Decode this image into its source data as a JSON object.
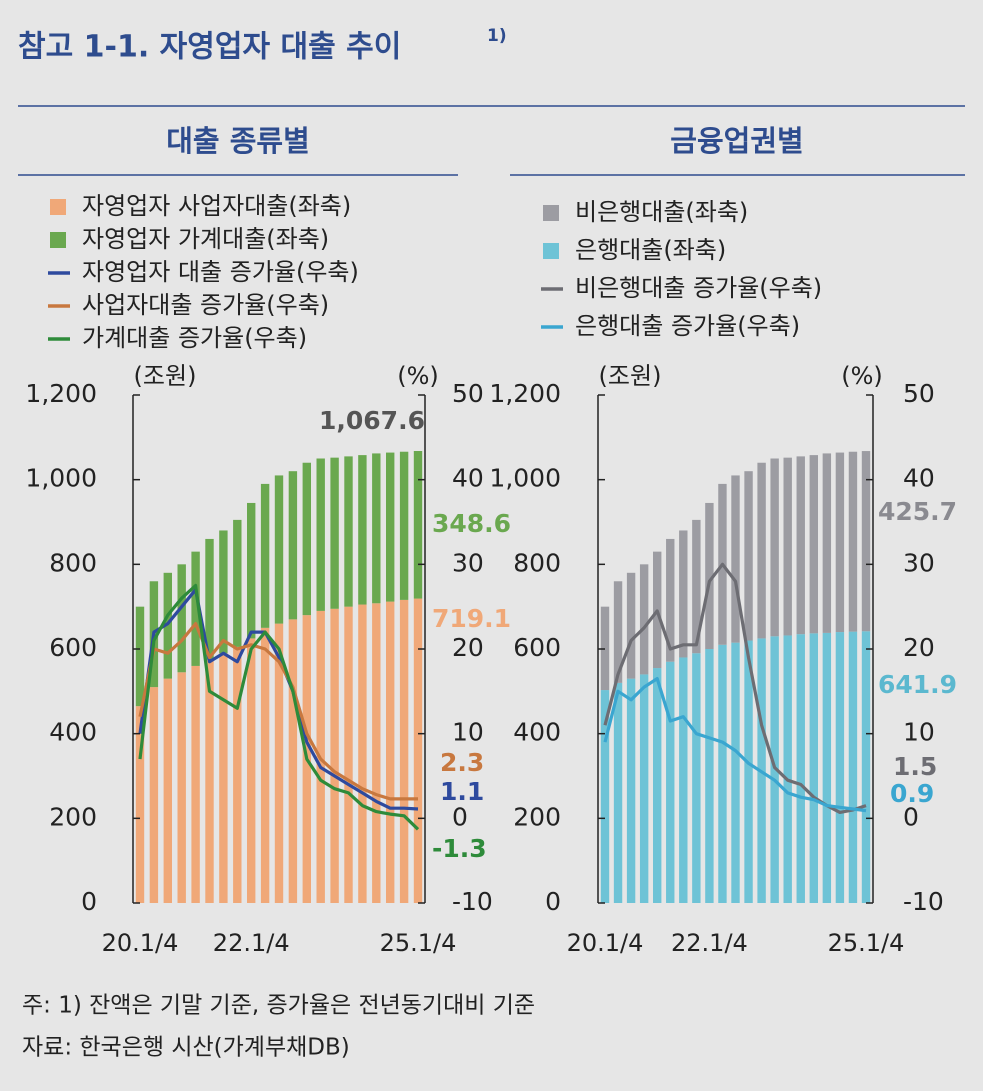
{
  "title": "참고 1-1. 자영업자 대출 추이",
  "title_note": "1)",
  "footnotes": [
    "주: 1) 잔액은 기말 기준, 증가율은 전년동기대비 기준",
    "자료: 한국은행 시산(가계부채DB)"
  ],
  "chart_data": [
    {
      "type": "bar",
      "title": "대출 종류별",
      "ylabel": "(조원)",
      "y2label": "(%)",
      "categories": [
        "20.1/4",
        null,
        null,
        null,
        null,
        null,
        null,
        null,
        "22.1/4",
        null,
        null,
        null,
        null,
        null,
        null,
        null,
        null,
        null,
        null,
        null,
        "25.1/4"
      ],
      "ylim": [
        0,
        1200
      ],
      "yticks": [
        0,
        200,
        400,
        600,
        800,
        {
          "value": 1000,
          "label": "1,000"
        },
        {
          "value": 1200,
          "label": "1,200"
        }
      ],
      "y2lim": [
        -10,
        50
      ],
      "y2ticks": [
        -10,
        0,
        10,
        20,
        30,
        40,
        50
      ],
      "annotations": [
        {
          "value": 1067.6,
          "label": "1,067.6"
        }
      ],
      "series": [
        {
          "name": "자영업자 사업자대출(좌축)",
          "type": "bar",
          "color": "#f0a878",
          "values": [
            465,
            510,
            530,
            545,
            560,
            575,
            590,
            605,
            625,
            650,
            660,
            670,
            680,
            690,
            695,
            700,
            705,
            708,
            712,
            716,
            719.1
          ]
        },
        {
          "name": "자영업자 가계대출(좌축)",
          "type": "bar",
          "color": "#6aa84f",
          "values": [
            235,
            250,
            250,
            255,
            270,
            285,
            290,
            300,
            320,
            340,
            350,
            350,
            360,
            360,
            357,
            355,
            353,
            354,
            352,
            350,
            348.6
          ]
        },
        {
          "name": "자영업자 대출 증가율(우축)",
          "type": "line",
          "axis": "y2",
          "color": "#2e4a9e",
          "values": [
            10,
            22,
            23,
            25,
            27,
            18.5,
            19.5,
            18.5,
            22,
            22,
            19,
            15,
            9,
            6,
            5,
            4,
            3,
            2,
            1.2,
            1.2,
            1.1
          ]
        },
        {
          "name": "사업자대출 증가율(우축)",
          "type": "line",
          "axis": "y2",
          "color": "#c8783f",
          "values": [
            12,
            20,
            19.5,
            21,
            23,
            19,
            21,
            20,
            20.5,
            20,
            18.5,
            15.5,
            10,
            7,
            5.5,
            4.5,
            3.5,
            2.8,
            2.3,
            2.3,
            2.3
          ]
        },
        {
          "name": "가계대출 증가율(우축)",
          "type": "line",
          "axis": "y2",
          "color": "#2e8b3a",
          "values": [
            7,
            21,
            24,
            26,
            27.5,
            15,
            14,
            13,
            20,
            22,
            20,
            15,
            7,
            4.5,
            3.5,
            3,
            1.5,
            0.8,
            0.5,
            0.3,
            -1.3
          ]
        }
      ]
    },
    {
      "type": "bar",
      "title": "금융업권별",
      "ylabel": "(조원)",
      "y2label": "(%)",
      "categories": [
        "20.1/4",
        null,
        null,
        null,
        null,
        null,
        null,
        null,
        "22.1/4",
        null,
        null,
        null,
        null,
        null,
        null,
        null,
        null,
        null,
        null,
        null,
        "25.1/4"
      ],
      "ylim": [
        0,
        1200
      ],
      "yticks": [
        0,
        200,
        400,
        600,
        800,
        {
          "value": 1000,
          "label": "1,000"
        },
        {
          "value": 1200,
          "label": "1,200"
        }
      ],
      "y2lim": [
        -10,
        50
      ],
      "y2ticks": [
        -10,
        0,
        10,
        20,
        30,
        40,
        50
      ],
      "series": [
        {
          "name": "비은행대출(좌축)",
          "type": "bar",
          "color": "#9c9ca2",
          "values": [
            197,
            240,
            250,
            260,
            275,
            290,
            300,
            315,
            345,
            380,
            395,
            400,
            415,
            420,
            420,
            420,
            421,
            424,
            424,
            425,
            425.7
          ]
        },
        {
          "name": "은행대출(좌축)",
          "type": "bar",
          "color": "#6ec3d6",
          "values": [
            503,
            520,
            530,
            540,
            555,
            570,
            580,
            590,
            600,
            610,
            615,
            620,
            625,
            630,
            632,
            635,
            637,
            638,
            640,
            641,
            641.9
          ]
        },
        {
          "name": "비은행대출 증가율(우축)",
          "type": "line",
          "axis": "y2",
          "color": "#6d6d73",
          "values": [
            11,
            17,
            21,
            22.5,
            24.5,
            20,
            20.5,
            20.5,
            28,
            30,
            28,
            19,
            11,
            6,
            4.5,
            4,
            2.5,
            1.5,
            0.7,
            1,
            1.5
          ]
        },
        {
          "name": "은행대출 증가율(우축)",
          "type": "line",
          "axis": "y2",
          "color": "#3aa6d0",
          "values": [
            9,
            15,
            14,
            15.5,
            16.5,
            11.5,
            12,
            10,
            9.5,
            9,
            8,
            6.5,
            5.5,
            4.5,
            3,
            2.5,
            2.2,
            1.5,
            1.3,
            1.1,
            0.9
          ]
        }
      ]
    }
  ]
}
